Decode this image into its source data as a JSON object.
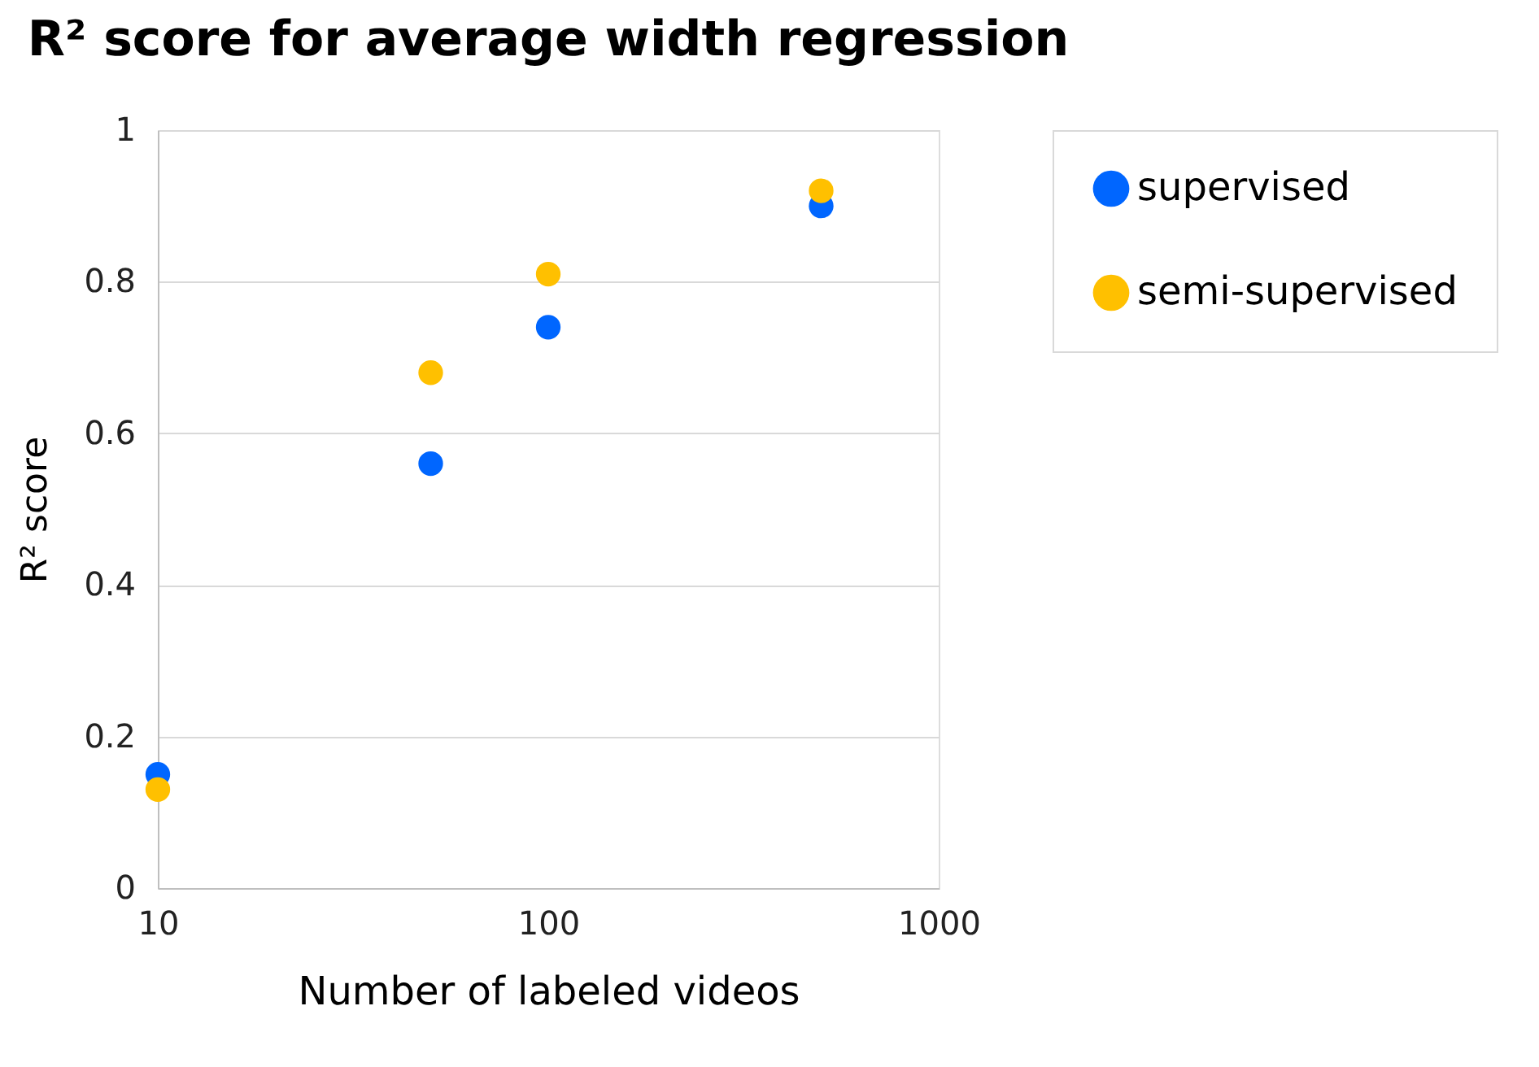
{
  "chart_data": {
    "type": "scatter",
    "title": "R² score for average width regression",
    "xlabel": "Number of labeled videos",
    "ylabel": "R² score",
    "x": [
      10,
      50,
      100,
      500
    ],
    "series": [
      {
        "name": "supervised",
        "color": "#0066ff",
        "values": [
          0.15,
          0.56,
          0.74,
          0.9
        ]
      },
      {
        "name": "semi-supervised",
        "color": "#ffc000",
        "values": [
          0.13,
          0.68,
          0.81,
          0.92
        ]
      }
    ],
    "xlim": [
      10,
      1000
    ],
    "xticks": [
      10,
      100,
      1000
    ],
    "ylim": [
      0,
      1
    ],
    "yticks": [
      0,
      0.2,
      0.4,
      0.6,
      0.8,
      1
    ],
    "log": "x",
    "grid": "y",
    "legend": "right",
    "marker": "circle"
  }
}
